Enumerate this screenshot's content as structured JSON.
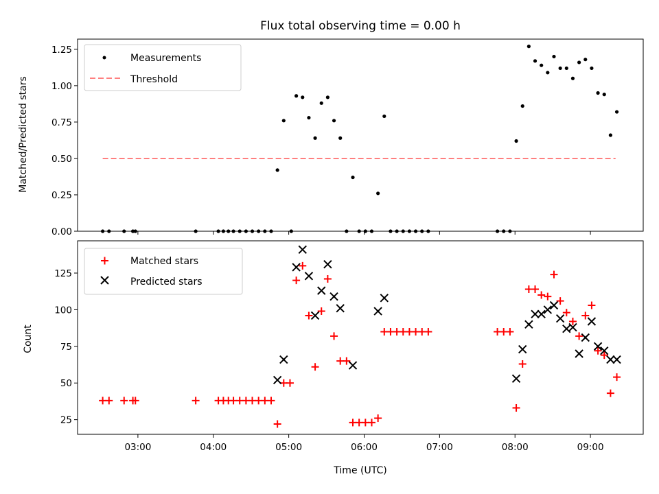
{
  "chart_data": [
    {
      "type": "scatter",
      "title": "Flux total observing time = 0.00 h",
      "xlabel": "",
      "ylabel": "Matched/Predicted stars",
      "ylim": [
        0,
        1.32
      ],
      "yticks": [
        "0.00",
        "0.25",
        "0.50",
        "0.75",
        "1.00",
        "1.25"
      ],
      "legend_position": "upper-left",
      "series": [
        {
          "name": "Measurements",
          "marker": "dot",
          "color": "#000000",
          "points": [
            [
              "02:32",
              0
            ],
            [
              "02:37",
              0
            ],
            [
              "02:49",
              0
            ],
            [
              "02:56",
              0
            ],
            [
              "02:58",
              0
            ],
            [
              "03:46",
              0
            ],
            [
              "04:04",
              0
            ],
            [
              "04:08",
              0
            ],
            [
              "04:12",
              0
            ],
            [
              "04:16",
              0
            ],
            [
              "04:21",
              0
            ],
            [
              "04:26",
              0
            ],
            [
              "04:31",
              0
            ],
            [
              "04:36",
              0
            ],
            [
              "04:41",
              0
            ],
            [
              "04:46",
              0
            ],
            [
              "04:51",
              0.42
            ],
            [
              "04:56",
              0.76
            ],
            [
              "05:02",
              0
            ],
            [
              "05:06",
              0.93
            ],
            [
              "05:11",
              0.92
            ],
            [
              "05:16",
              0.78
            ],
            [
              "05:21",
              0.64
            ],
            [
              "05:26",
              0.88
            ],
            [
              "05:31",
              0.92
            ],
            [
              "05:36",
              0.76
            ],
            [
              "05:41",
              0.64
            ],
            [
              "05:46",
              0
            ],
            [
              "05:51",
              0.37
            ],
            [
              "05:56",
              0
            ],
            [
              "06:01",
              0
            ],
            [
              "06:06",
              0
            ],
            [
              "06:11",
              0.26
            ],
            [
              "06:16",
              0.79
            ],
            [
              "06:21",
              0
            ],
            [
              "06:26",
              0
            ],
            [
              "06:31",
              0
            ],
            [
              "06:36",
              0
            ],
            [
              "06:41",
              0
            ],
            [
              "06:46",
              0
            ],
            [
              "06:51",
              0
            ],
            [
              "07:46",
              0
            ],
            [
              "07:51",
              0
            ],
            [
              "07:56",
              0
            ],
            [
              "08:01",
              0.62
            ],
            [
              "08:06",
              0.86
            ],
            [
              "08:11",
              1.27
            ],
            [
              "08:16",
              1.17
            ],
            [
              "08:21",
              1.14
            ],
            [
              "08:26",
              1.09
            ],
            [
              "08:31",
              1.2
            ],
            [
              "08:36",
              1.12
            ],
            [
              "08:41",
              1.12
            ],
            [
              "08:46",
              1.05
            ],
            [
              "08:51",
              1.16
            ],
            [
              "08:56",
              1.18
            ],
            [
              "09:01",
              1.12
            ],
            [
              "09:06",
              0.95
            ],
            [
              "09:11",
              0.94
            ],
            [
              "09:16",
              0.66
            ],
            [
              "09:21",
              0.82
            ]
          ]
        },
        {
          "name": "Threshold",
          "marker": "dashed-line",
          "color": "#ff7f7f",
          "points": [
            [
              "02:32",
              0.5
            ],
            [
              "09:20",
              0.5
            ]
          ]
        }
      ]
    },
    {
      "type": "scatter",
      "title": "",
      "xlabel": "Time (UTC)",
      "ylabel": "Count",
      "ylim": [
        15,
        147
      ],
      "yticks": [
        "25",
        "50",
        "75",
        "100",
        "125"
      ],
      "xticks": [
        "03:00",
        "04:00",
        "05:00",
        "06:00",
        "07:00",
        "08:00",
        "09:00"
      ],
      "xlim": [
        "02:12",
        "09:42"
      ],
      "legend_position": "upper-left",
      "series": [
        {
          "name": "Matched stars",
          "marker": "plus",
          "color": "#ff0000",
          "points": [
            [
              "02:32",
              38
            ],
            [
              "02:37",
              38
            ],
            [
              "02:49",
              38
            ],
            [
              "02:56",
              38
            ],
            [
              "02:58",
              38
            ],
            [
              "03:46",
              38
            ],
            [
              "04:04",
              38
            ],
            [
              "04:08",
              38
            ],
            [
              "04:12",
              38
            ],
            [
              "04:16",
              38
            ],
            [
              "04:21",
              38
            ],
            [
              "04:26",
              38
            ],
            [
              "04:31",
              38
            ],
            [
              "04:36",
              38
            ],
            [
              "04:41",
              38
            ],
            [
              "04:46",
              38
            ],
            [
              "04:51",
              22
            ],
            [
              "04:56",
              50
            ],
            [
              "05:01",
              50
            ],
            [
              "05:06",
              120
            ],
            [
              "05:11",
              130
            ],
            [
              "05:16",
              96
            ],
            [
              "05:21",
              61
            ],
            [
              "05:26",
              99
            ],
            [
              "05:31",
              121
            ],
            [
              "05:36",
              82
            ],
            [
              "05:41",
              65
            ],
            [
              "05:46",
              65
            ],
            [
              "05:51",
              23
            ],
            [
              "05:56",
              23
            ],
            [
              "06:01",
              23
            ],
            [
              "06:06",
              23
            ],
            [
              "06:11",
              26
            ],
            [
              "06:16",
              85
            ],
            [
              "06:21",
              85
            ],
            [
              "06:26",
              85
            ],
            [
              "06:31",
              85
            ],
            [
              "06:36",
              85
            ],
            [
              "06:41",
              85
            ],
            [
              "06:46",
              85
            ],
            [
              "06:51",
              85
            ],
            [
              "07:46",
              85
            ],
            [
              "07:51",
              85
            ],
            [
              "07:56",
              85
            ],
            [
              "08:01",
              33
            ],
            [
              "08:06",
              63
            ],
            [
              "08:11",
              114
            ],
            [
              "08:16",
              114
            ],
            [
              "08:21",
              110
            ],
            [
              "08:26",
              109
            ],
            [
              "08:31",
              124
            ],
            [
              "08:36",
              106
            ],
            [
              "08:41",
              98
            ],
            [
              "08:46",
              92
            ],
            [
              "08:51",
              82
            ],
            [
              "08:56",
              96
            ],
            [
              "09:01",
              103
            ],
            [
              "09:06",
              72
            ],
            [
              "09:11",
              69
            ],
            [
              "09:16",
              43
            ],
            [
              "09:21",
              54
            ]
          ]
        },
        {
          "name": "Predicted stars",
          "marker": "x",
          "color": "#000000",
          "points": [
            [
              "04:51",
              52
            ],
            [
              "04:56",
              66
            ],
            [
              "05:06",
              129
            ],
            [
              "05:11",
              141
            ],
            [
              "05:16",
              123
            ],
            [
              "05:21",
              96
            ],
            [
              "05:26",
              113
            ],
            [
              "05:31",
              131
            ],
            [
              "05:36",
              109
            ],
            [
              "05:41",
              101
            ],
            [
              "05:51",
              62
            ],
            [
              "06:11",
              99
            ],
            [
              "06:16",
              108
            ],
            [
              "08:01",
              53
            ],
            [
              "08:06",
              73
            ],
            [
              "08:11",
              90
            ],
            [
              "08:16",
              97
            ],
            [
              "08:21",
              97
            ],
            [
              "08:26",
              100
            ],
            [
              "08:31",
              103
            ],
            [
              "08:36",
              94
            ],
            [
              "08:41",
              87
            ],
            [
              "08:46",
              88
            ],
            [
              "08:51",
              70
            ],
            [
              "08:56",
              81
            ],
            [
              "09:01",
              92
            ],
            [
              "09:06",
              75
            ],
            [
              "09:11",
              72
            ],
            [
              "09:16",
              66
            ],
            [
              "09:21",
              66
            ]
          ]
        }
      ]
    }
  ]
}
